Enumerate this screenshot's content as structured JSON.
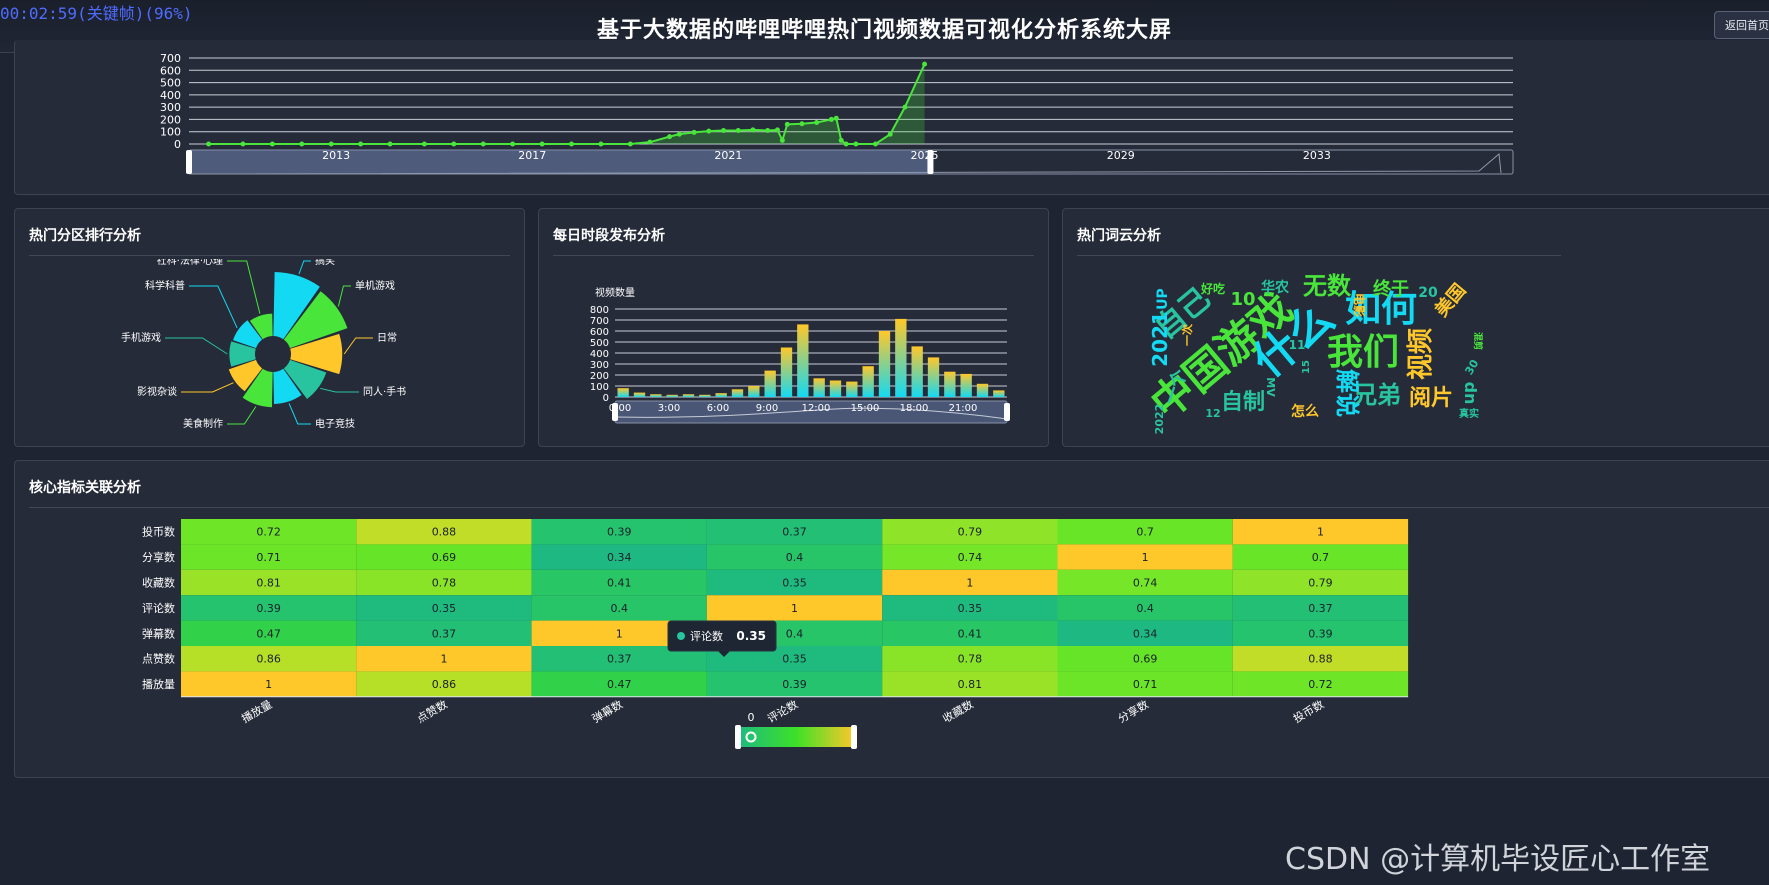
{
  "overlay": {
    "video_time": "00:02:59(关键帧)(96%)"
  },
  "header": {
    "title": "基于大数据的哔哩哔哩热门视频数据可视化分析系统大屏",
    "back_button": "返回首页"
  },
  "panels": {
    "timeline": {
      "title": ""
    },
    "category": {
      "title": "热门分区排行分析"
    },
    "hourly": {
      "title": "每日时段发布分析"
    },
    "wordcloud": {
      "title": "热门词云分析"
    },
    "heatmap": {
      "title": "核心指标关联分析"
    }
  },
  "colors": {
    "green": "#49e53a",
    "cyan": "#14d9f2",
    "yellow": "#ffc72a",
    "teal": "#28c4a0",
    "bg": "#252b39"
  },
  "chart_data": [
    {
      "id": "timeline",
      "type": "line",
      "x_ticks": [
        "2013",
        "2017",
        "2021",
        "2025",
        "2029",
        "2033"
      ],
      "y_ticks": [
        0,
        100,
        200,
        300,
        400,
        500,
        600,
        700
      ],
      "ylim": [
        0,
        700
      ],
      "xlim": [
        2010,
        2037
      ],
      "series": [
        {
          "x": [
            2010.4,
            2011.1,
            2011.7,
            2012.3,
            2012.9,
            2013.5,
            2014.1,
            2014.8,
            2015.4,
            2016.0,
            2016.6,
            2017.2,
            2017.8,
            2018.4,
            2019.0,
            2019.4,
            2019.8,
            2020.0,
            2020.3,
            2020.6,
            2020.9,
            2021.2,
            2021.5,
            2021.8,
            2022.0,
            2022.1,
            2022.2,
            2022.5,
            2022.8,
            2023.1,
            2023.2,
            2023.3,
            2023.4,
            2023.6,
            2024.0,
            2024.3,
            2024.6,
            2025.0
          ],
          "y": [
            0,
            0,
            0,
            0,
            0,
            0,
            0,
            0,
            0,
            0,
            0,
            0,
            0,
            0,
            0,
            15,
            60,
            80,
            95,
            105,
            110,
            110,
            115,
            110,
            115,
            30,
            160,
            165,
            175,
            200,
            210,
            30,
            0,
            0,
            0,
            80,
            300,
            650
          ]
        }
      ],
      "grid": true,
      "datazoom": {
        "start": 0,
        "end": 0.56
      }
    },
    {
      "id": "category",
      "type": "pie",
      "rose": true,
      "labels": [
        "搞笑",
        "单机游戏",
        "日常",
        "同人·手书",
        "电子竞技",
        "美食制作",
        "影视杂谈",
        "手机游戏",
        "科学科普",
        "社科·法律·心理"
      ],
      "values": [
        100,
        95,
        80,
        60,
        50,
        55,
        45,
        40,
        38,
        35
      ],
      "colors": [
        "#14d9f2",
        "#49e53a",
        "#ffc72a",
        "#28c4a0",
        "#14d9f2",
        "#49e53a",
        "#ffc72a",
        "#28c4a0",
        "#14d9f2",
        "#49e53a"
      ]
    },
    {
      "id": "hourly",
      "type": "bar",
      "ylabel": "视频数量",
      "ylim": [
        0,
        800
      ],
      "y_ticks": [
        0,
        100,
        200,
        300,
        400,
        500,
        600,
        700,
        800
      ],
      "x_ticks": [
        "0:00",
        "3:00",
        "6:00",
        "9:00",
        "12:00",
        "15:00",
        "18:00",
        "21:00"
      ],
      "categories": [
        "0",
        "1",
        "2",
        "3",
        "4",
        "5",
        "6",
        "7",
        "8",
        "9",
        "10",
        "11",
        "12",
        "13",
        "14",
        "15",
        "16",
        "17",
        "18",
        "19",
        "20",
        "21",
        "22",
        "23"
      ],
      "values": [
        80,
        40,
        25,
        20,
        25,
        20,
        35,
        70,
        100,
        240,
        450,
        660,
        170,
        150,
        140,
        280,
        600,
        710,
        460,
        360,
        230,
        210,
        120,
        60
      ],
      "grid": true
    },
    {
      "id": "wordcloud",
      "type": "table",
      "words": [
        {
          "text": "中国游戏",
          "color": "#49e53a"
        },
        {
          "text": "什么",
          "color": "#14d9f2"
        },
        {
          "text": "自己",
          "color": "#28c4a0"
        },
        {
          "text": "如何",
          "color": "#14d9f2"
        },
        {
          "text": "我们",
          "color": "#49e53a"
        },
        {
          "text": "视频",
          "color": "#ffc72a"
        },
        {
          "text": "无数",
          "color": "#49e53a"
        },
        {
          "text": "兄弟",
          "color": "#28c4a0"
        },
        {
          "text": "阅片",
          "color": "#ffc72a"
        },
        {
          "text": "自制",
          "color": "#28c4a0"
        },
        {
          "text": "终于",
          "color": "#49e53a"
        },
        {
          "text": "美国",
          "color": "#ffc72a"
        },
        {
          "text": "2021",
          "color": "#14d9f2"
        },
        {
          "text": "UP",
          "color": "#14d9f2"
        },
        {
          "text": "10",
          "color": "#49e53a"
        },
        {
          "text": "华农",
          "color": "#28c4a0"
        },
        {
          "text": "好吃",
          "color": "#49e53a"
        },
        {
          "text": "20",
          "color": "#28c4a0"
        },
        {
          "text": "怎么",
          "color": "#ffc72a"
        },
        {
          "text": "电影",
          "color": "#ffc72a"
        },
        {
          "text": "一次",
          "color": "#ffc72a"
        },
        {
          "text": "一个",
          "color": "#28c4a0"
        },
        {
          "text": "解说",
          "color": "#14d9f2"
        },
        {
          "text": "真实",
          "color": "#28c4a0"
        },
        {
          "text": "11",
          "color": "#28c4a0"
        },
        {
          "text": "30",
          "color": "#28c4a0"
        },
        {
          "text": "12",
          "color": "#28c4a0"
        },
        {
          "text": "2022",
          "color": "#28c4a0"
        },
        {
          "text": "dn",
          "color": "#28c4a0"
        },
        {
          "text": "MV",
          "color": "#28c4a0"
        },
        {
          "text": "混剪",
          "color": "#49e53a"
        },
        {
          "text": "15",
          "color": "#28c4a0"
        }
      ]
    },
    {
      "id": "heatmap",
      "type": "heatmap",
      "x_labels": [
        "播放量",
        "点赞数",
        "弹幕数",
        "评论数",
        "收藏数",
        "分享数",
        "投币数"
      ],
      "y_labels": [
        "投币数",
        "分享数",
        "收藏数",
        "评论数",
        "弹幕数",
        "点赞数",
        "播放量"
      ],
      "values": [
        [
          0.72,
          0.88,
          0.39,
          0.37,
          0.79,
          0.7,
          1
        ],
        [
          0.71,
          0.69,
          0.34,
          0.4,
          0.74,
          1,
          0.7
        ],
        [
          0.81,
          0.78,
          0.41,
          0.35,
          1,
          0.74,
          0.79
        ],
        [
          0.39,
          0.35,
          0.4,
          1,
          0.35,
          0.4,
          0.37
        ],
        [
          0.47,
          0.37,
          1,
          0.4,
          0.41,
          0.34,
          0.39
        ],
        [
          0.86,
          1,
          0.37,
          0.35,
          0.78,
          0.69,
          0.88
        ],
        [
          1,
          0.86,
          0.47,
          0.39,
          0.81,
          0.71,
          0.72
        ]
      ],
      "visual_map": {
        "min_label": "0",
        "range": [
          0,
          1
        ]
      },
      "tooltip": {
        "label": "评论数",
        "value": "0.35"
      }
    }
  ],
  "watermark": "CSDN @计算机毕设匠心工作室"
}
